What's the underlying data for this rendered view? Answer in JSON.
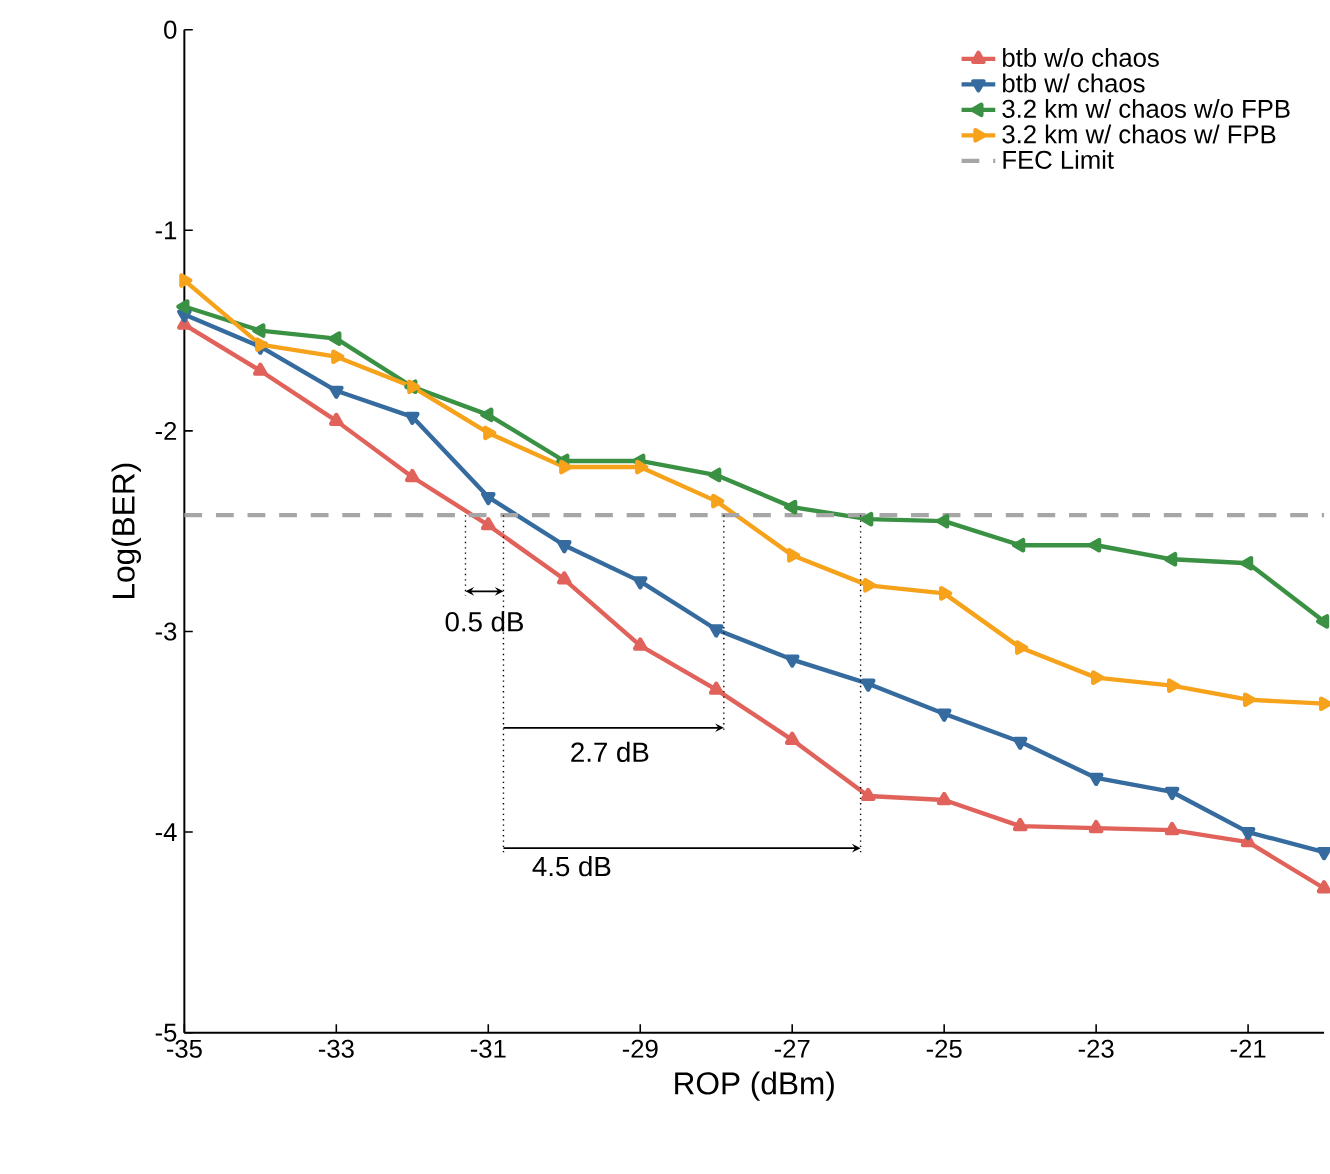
{
  "chart_data": {
    "type": "line",
    "xlabel": "ROP (dBm)",
    "ylabel": "Log(BER)",
    "x": [
      -35,
      -34,
      -33,
      -32,
      -31,
      -30,
      -29,
      -28,
      -27,
      -26,
      -25,
      -24,
      -23,
      -22,
      -21,
      -20
    ],
    "series": [
      {
        "name": "btb w/o chaos",
        "color": "#e0625a",
        "marker": "triangle",
        "values": [
          -1.47,
          -1.7,
          -1.95,
          -2.23,
          -2.47,
          -2.74,
          -3.07,
          -3.29,
          -3.54,
          -3.82,
          -3.84,
          -3.97,
          -3.98,
          -3.99,
          -4.05,
          -4.28
        ]
      },
      {
        "name": "btb w/ chaos",
        "color": "#356b9e",
        "marker": "triangle",
        "values": [
          -1.42,
          -1.58,
          -1.8,
          -1.93,
          -2.33,
          -2.57,
          -2.75,
          -2.99,
          -3.14,
          -3.26,
          -3.41,
          -3.55,
          -3.73,
          -3.8,
          -4.0,
          -4.1
        ]
      },
      {
        "name": "3.2 km w/ chaos w/o FPB",
        "color": "#3a9143",
        "marker": "triangle",
        "values": [
          -1.38,
          -1.5,
          -1.54,
          -1.78,
          -1.92,
          -2.15,
          -2.15,
          -2.22,
          -2.38,
          -2.44,
          -2.45,
          -2.57,
          -2.57,
          -2.64,
          -2.66,
          -2.95
        ]
      },
      {
        "name": "3.2 km w/ chaos w/ FPB",
        "color": "#f7a21b",
        "marker": "triangle",
        "values": [
          -1.25,
          -1.57,
          -1.63,
          -1.78,
          -2.01,
          -2.18,
          -2.18,
          -2.35,
          -2.62,
          -2.77,
          -2.81,
          -3.08,
          -3.23,
          -3.27,
          -3.34,
          -3.36
        ]
      }
    ],
    "ref_lines": [
      {
        "axis": "y",
        "value": -2.42,
        "label": "FEC Limit",
        "color": "#a6a6a6",
        "line_style": "dashed"
      }
    ],
    "annotations": [
      {
        "text": "0.5 dB",
        "x": -31.3,
        "y": -2.42
      },
      "2.7 dB",
      {
        "text": "4.5 dB",
        "x": -30.8,
        "y": -2.42
      }
    ],
    "xlim": [
      -35,
      -20
    ],
    "ylim": [
      -5,
      0
    ],
    "xticks": [
      -35,
      -33,
      -31,
      -29,
      -27,
      -25,
      -23,
      -21
    ],
    "yticks": [
      -5,
      -4,
      -3,
      -2,
      -1,
      0
    ],
    "grid": false,
    "legend": "top right",
    "line_style": "solid"
  }
}
